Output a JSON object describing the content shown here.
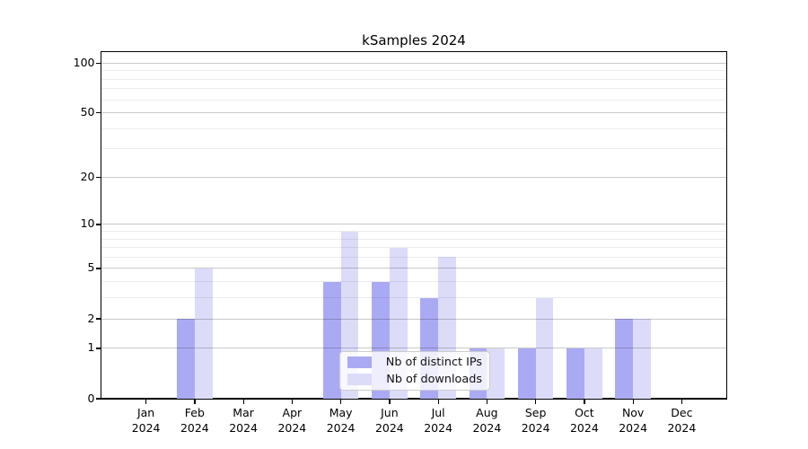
{
  "chart_data": {
    "type": "bar",
    "title": "kSamples 2024",
    "categories": [
      "Jan",
      "Feb",
      "Mar",
      "Apr",
      "May",
      "Jun",
      "Jul",
      "Aug",
      "Sep",
      "Oct",
      "Nov",
      "Dec"
    ],
    "category_year": "2024",
    "series": [
      {
        "name": "Nb of distinct IPs",
        "color": "#aaaaf4",
        "values": [
          0,
          2,
          0,
          0,
          4,
          4,
          3,
          1,
          1,
          1,
          2,
          0
        ]
      },
      {
        "name": "Nb of downloads",
        "color": "#dcdcf9",
        "values": [
          0,
          5,
          0,
          0,
          9,
          7,
          6,
          1,
          3,
          1,
          2,
          0
        ]
      }
    ],
    "y_axis": {
      "scale": "log1p",
      "ticks": [
        0,
        1,
        2,
        5,
        10,
        20,
        50,
        100
      ],
      "minor_gridlines": [
        3,
        4,
        6,
        7,
        8,
        9,
        30,
        40,
        60,
        70,
        80,
        90
      ],
      "ylim": [
        0,
        118
      ]
    },
    "legend": {
      "position": "lower center",
      "entries": [
        "Nb of distinct IPs",
        "Nb of downloads"
      ]
    },
    "grid": "on",
    "xlabel": "",
    "ylabel": ""
  }
}
